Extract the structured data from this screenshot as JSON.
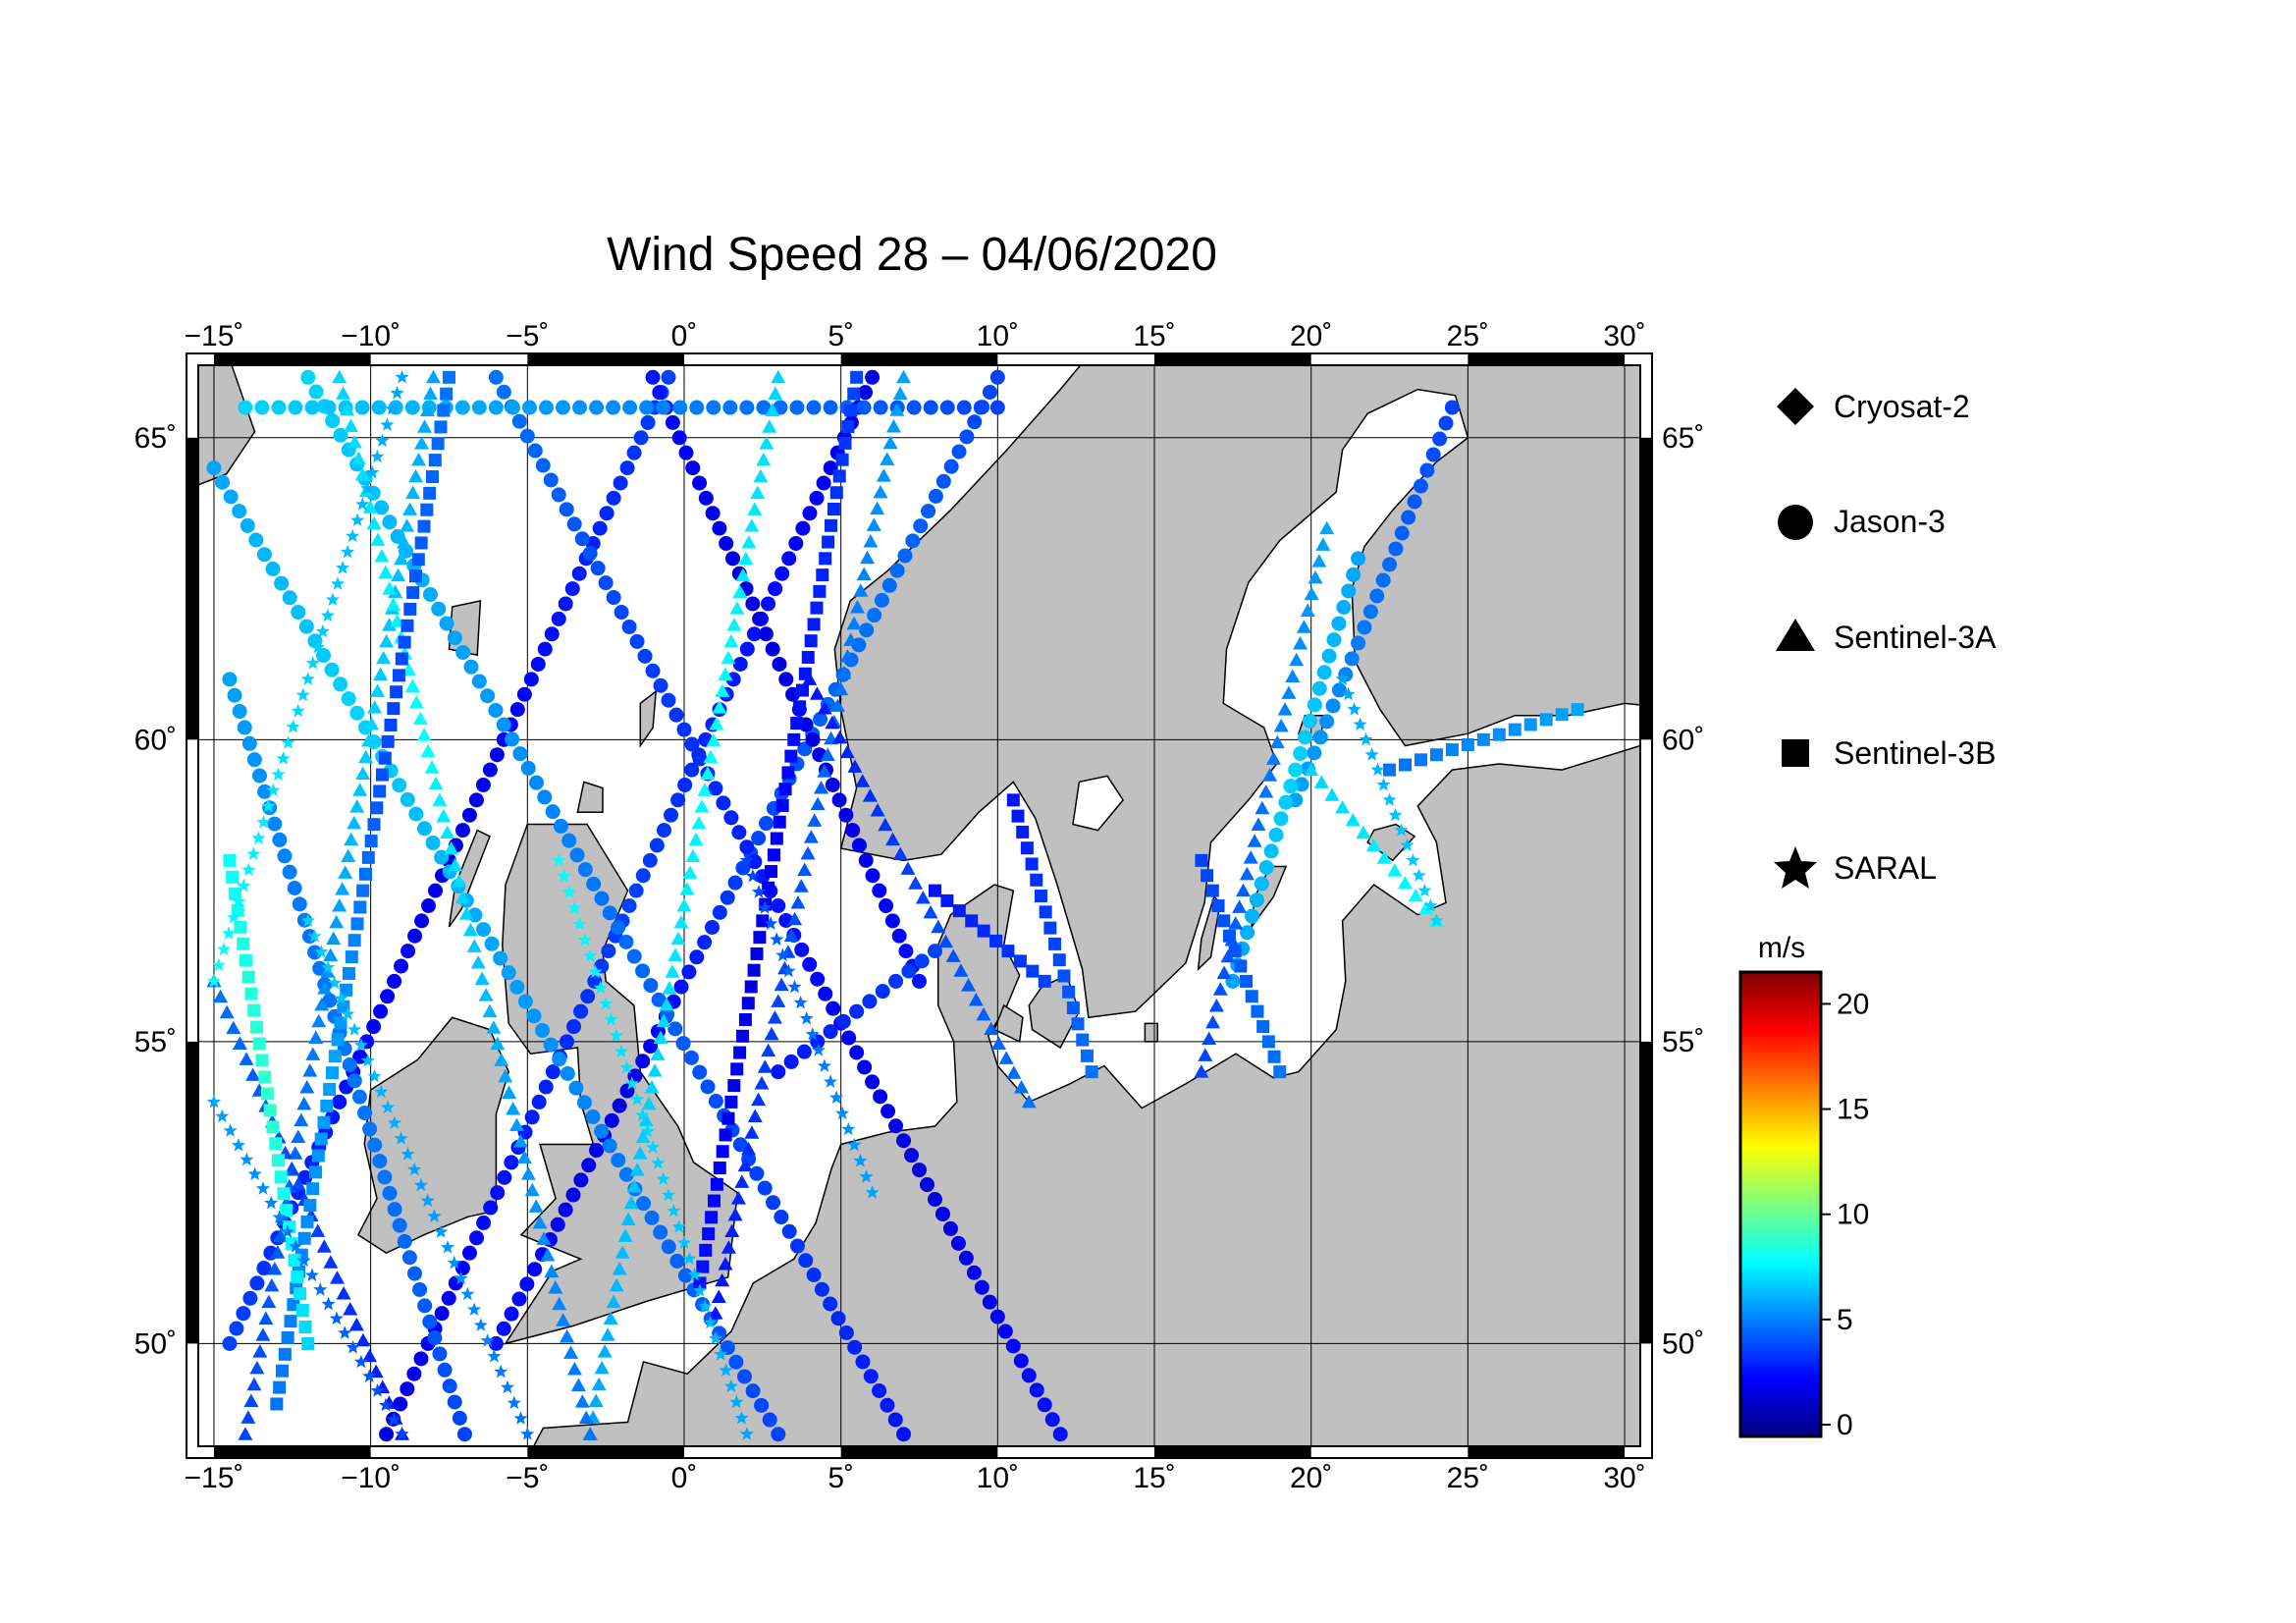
{
  "title": "Wind Speed 28 – 04/06/2020",
  "map": {
    "lon_range": [
      -15.5,
      30.5
    ],
    "lat_range": [
      48.3,
      66.2
    ],
    "lon_ticks": [
      -15,
      -10,
      -5,
      0,
      5,
      10,
      15,
      20,
      25,
      30
    ],
    "lat_ticks": [
      50,
      55,
      60,
      65
    ],
    "lon_tick_labels": [
      "−15˚",
      "−10˚",
      "−5˚",
      "0˚",
      "5˚",
      "10˚",
      "15˚",
      "20˚",
      "25˚",
      "30˚"
    ],
    "lat_tick_labels": [
      "50˚",
      "55˚",
      "60˚",
      "65˚"
    ],
    "land_color": "#c0c0c0",
    "sea_color": "#ffffff",
    "grid": true
  },
  "legend": {
    "items": [
      {
        "label": "Cryosat-2",
        "marker": "diamond"
      },
      {
        "label": "Jason-3",
        "marker": "circle"
      },
      {
        "label": "Sentinel-3A",
        "marker": "triangle"
      },
      {
        "label": "Sentinel-3B",
        "marker": "square"
      },
      {
        "label": "SARAL",
        "marker": "star"
      }
    ]
  },
  "colorbar": {
    "unit": "m/s",
    "min": 0,
    "max": 21,
    "ticks": [
      0,
      5,
      10,
      15,
      20
    ],
    "tick_labels": [
      "0",
      "5",
      "10",
      "15",
      "20"
    ],
    "colors": [
      "#00007f",
      "#0000ff",
      "#007fff",
      "#00ffff",
      "#7fff7f",
      "#ffff00",
      "#ff7f00",
      "#ff0000",
      "#7f0000"
    ]
  },
  "chart_data": {
    "type": "scatter",
    "title": "Wind Speed 28 – 04/06/2020",
    "xlabel": "",
    "ylabel": "",
    "xlim": [
      -15.5,
      30.5
    ],
    "ylim": [
      48.3,
      66.2
    ],
    "value_unit": "m/s",
    "series": [
      {
        "name": "Jason-3",
        "marker": "circle",
        "tracks": [
          {
            "start": [
              -14.5,
              50.0
            ],
            "end": [
              -0.5,
              66.0
            ],
            "values": [
              4,
              3,
              2,
              3,
              4
            ]
          },
          {
            "start": [
              -9.5,
              48.5
            ],
            "end": [
              6.0,
              66.0
            ],
            "values": [
              2,
              3,
              4,
              3,
              2
            ]
          },
          {
            "start": [
              -6.0,
              50.0
            ],
            "end": [
              10.0,
              66.0
            ],
            "values": [
              3,
              2,
              4,
              5,
              4
            ]
          },
          {
            "start": [
              -15.0,
              64.5
            ],
            "end": [
              3.0,
              48.5
            ],
            "values": [
              6,
              7,
              6,
              5,
              4
            ]
          },
          {
            "start": [
              -12.0,
              66.0
            ],
            "end": [
              7.0,
              48.5
            ],
            "values": [
              7,
              6,
              5,
              4,
              3
            ]
          },
          {
            "start": [
              -6.0,
              66.0
            ],
            "end": [
              12.0,
              48.5
            ],
            "values": [
              5,
              4,
              3,
              2,
              3
            ]
          },
          {
            "start": [
              -1.0,
              66.0
            ],
            "end": [
              7.5,
              56.0
            ],
            "values": [
              3,
              2,
              2,
              3
            ]
          },
          {
            "start": [
              -14.5,
              61.0
            ],
            "end": [
              -7.0,
              48.5
            ],
            "values": [
              6,
              5,
              5,
              4
            ]
          },
          {
            "start": [
              3.0,
              54.5
            ],
            "end": [
              8.0,
              56.5
            ],
            "values": [
              3,
              4
            ]
          },
          {
            "start": [
              19.5,
              59.0
            ],
            "end": [
              24.5,
              65.5
            ],
            "values": [
              6,
              5,
              4
            ]
          },
          {
            "start": [
              17.5,
              56.0
            ],
            "end": [
              21.5,
              63.0
            ],
            "values": [
              6,
              7,
              6
            ]
          },
          {
            "start": [
              -14.0,
              65.5
            ],
            "end": [
              10.0,
              65.5
            ],
            "values": [
              7,
              6,
              5,
              4
            ]
          }
        ]
      },
      {
        "name": "Sentinel-3A",
        "marker": "triangle",
        "tracks": [
          {
            "start": [
              -14.0,
              48.5
            ],
            "end": [
              -8.0,
              66.0
            ],
            "values": [
              4,
              5,
              7,
              6
            ]
          },
          {
            "start": [
              -3.0,
              48.5
            ],
            "end": [
              3.0,
              66.0
            ],
            "values": [
              6,
              7,
              8,
              7
            ]
          },
          {
            "start": [
              1.0,
              50.5
            ],
            "end": [
              7.0,
              66.0
            ],
            "values": [
              3,
              4,
              5,
              6
            ]
          },
          {
            "start": [
              -11.0,
              66.0
            ],
            "end": [
              -3.0,
              48.5
            ],
            "values": [
              7,
              8,
              6,
              5
            ]
          },
          {
            "start": [
              4.0,
              61.0
            ],
            "end": [
              11.0,
              54.0
            ],
            "values": [
              3,
              4,
              5
            ]
          },
          {
            "start": [
              16.5,
              54.5
            ],
            "end": [
              20.5,
              63.5
            ],
            "values": [
              4,
              5,
              6
            ]
          },
          {
            "start": [
              20.0,
              59.5
            ],
            "end": [
              24.0,
              57.0
            ],
            "values": [
              7,
              8
            ]
          },
          {
            "start": [
              -15.0,
              56.0
            ],
            "end": [
              -9.0,
              48.5
            ],
            "values": [
              5,
              4,
              3
            ]
          }
        ]
      },
      {
        "name": "Sentinel-3B",
        "marker": "square",
        "tracks": [
          {
            "start": [
              -13.0,
              49.0
            ],
            "end": [
              -7.5,
              66.0
            ],
            "values": [
              5,
              6,
              4,
              5
            ]
          },
          {
            "start": [
              0.5,
              51.0
            ],
            "end": [
              5.5,
              66.0
            ],
            "values": [
              3,
              2,
              3,
              4
            ]
          },
          {
            "start": [
              -14.5,
              58.0
            ],
            "end": [
              -12.0,
              50.0
            ],
            "values": [
              8,
              9,
              7
            ]
          },
          {
            "start": [
              10.5,
              59.0
            ],
            "end": [
              13.0,
              54.5
            ],
            "values": [
              3,
              4,
              5
            ]
          },
          {
            "start": [
              16.5,
              58.0
            ],
            "end": [
              19.0,
              54.5
            ],
            "values": [
              4,
              5
            ]
          },
          {
            "start": [
              22.5,
              59.5
            ],
            "end": [
              28.5,
              60.5
            ],
            "values": [
              5,
              6
            ]
          },
          {
            "start": [
              8.0,
              57.5
            ],
            "end": [
              11.5,
              56.0
            ],
            "values": [
              3,
              4
            ]
          }
        ]
      },
      {
        "name": "SARAL",
        "marker": "star",
        "tracks": [
          {
            "start": [
              -15.0,
              54.0
            ],
            "end": [
              -9.0,
              48.5
            ],
            "values": [
              6,
              5,
              4
            ]
          },
          {
            "start": [
              -12.0,
              57.0
            ],
            "end": [
              -5.0,
              48.5
            ],
            "values": [
              7,
              6,
              5
            ]
          },
          {
            "start": [
              -4.0,
              58.0
            ],
            "end": [
              2.0,
              48.5
            ],
            "values": [
              8,
              7,
              6
            ]
          },
          {
            "start": [
              -9.0,
              66.0
            ],
            "end": [
              -15.0,
              56.0
            ],
            "values": [
              6,
              7,
              8
            ]
          },
          {
            "start": [
              2.0,
              58.0
            ],
            "end": [
              6.0,
              52.5
            ],
            "values": [
              4,
              5,
              6
            ]
          },
          {
            "start": [
              21.0,
              61.0
            ],
            "end": [
              24.0,
              57.0
            ],
            "values": [
              6,
              7
            ]
          }
        ]
      },
      {
        "name": "Cryosat-2",
        "marker": "diamond",
        "tracks": []
      }
    ]
  }
}
